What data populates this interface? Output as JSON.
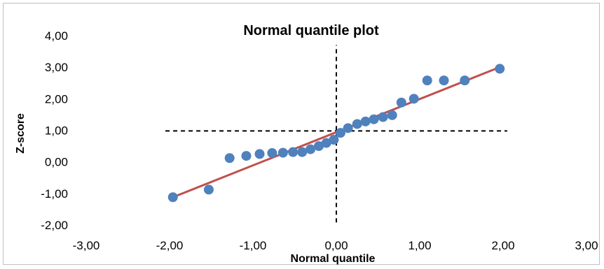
{
  "chart_data": {
    "type": "scatter",
    "title": "Normal quantile plot",
    "xlabel": "Normal quantile",
    "ylabel": "Z-score",
    "xlim": [
      -3,
      3
    ],
    "ylim": [
      -2,
      4
    ],
    "x_ticks": [
      -3,
      -2,
      -1,
      0,
      1,
      2,
      3
    ],
    "y_ticks": [
      -2,
      -1,
      0,
      1,
      2,
      3,
      4
    ],
    "x_tick_labels": [
      "-3,00",
      "-2,00",
      "-1,00",
      "0,00",
      "1,00",
      "2,00",
      "3,00"
    ],
    "y_tick_labels": [
      "-2,00",
      "-1,00",
      "0,00",
      "1,00",
      "2,00",
      "3,00",
      "4,00"
    ],
    "grid": false,
    "legend": "none",
    "colors": {
      "points": "#4f81bd",
      "fit_line": "#c0504d",
      "reference_lines": "#000000"
    },
    "points": {
      "x": [
        -1.96,
        -1.53,
        -1.28,
        -1.08,
        -0.92,
        -0.77,
        -0.64,
        -0.52,
        -0.41,
        -0.31,
        -0.21,
        -0.12,
        -0.03,
        0.05,
        0.14,
        0.25,
        0.35,
        0.45,
        0.56,
        0.67,
        0.78,
        0.93,
        1.09,
        1.29,
        1.54,
        1.96
      ],
      "y": [
        -1.12,
        -0.88,
        0.12,
        0.19,
        0.25,
        0.28,
        0.29,
        0.31,
        0.31,
        0.4,
        0.5,
        0.6,
        0.7,
        0.92,
        1.07,
        1.2,
        1.28,
        1.35,
        1.42,
        1.48,
        1.88,
        2.0,
        2.58,
        2.58,
        2.58,
        2.95
      ]
    },
    "fit_line": {
      "x": [
        -1.96,
        1.96
      ],
      "y": [
        -1.12,
        3.0
      ]
    },
    "reference_lines": {
      "vertical_x": 0,
      "vertical_y_range": [
        -1.92,
        3.7
      ],
      "horizontal_y": 0.98,
      "horizontal_x_range": [
        -2.05,
        2.05
      ]
    }
  }
}
